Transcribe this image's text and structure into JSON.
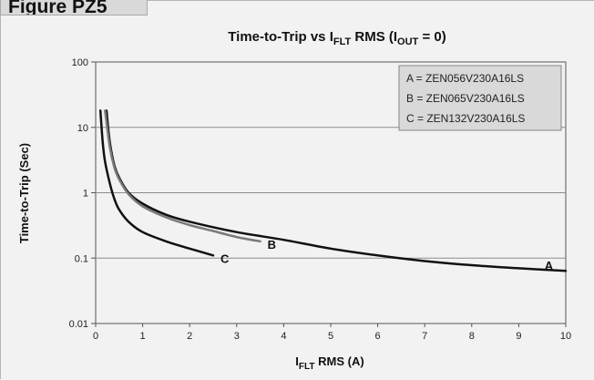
{
  "figure_label": "Figure PZ5",
  "chart_data": {
    "type": "line",
    "title": {
      "main": "Time-to-Trip vs I",
      "sub1": "FLT",
      "mid": " RMS (I",
      "sub2": "OUT",
      "end": " = 0)"
    },
    "xlabel": {
      "pre": "I",
      "sub": "FLT",
      "post": " RMS (A)"
    },
    "ylabel": "Time-to-Trip (Sec)",
    "x_scale": "linear",
    "y_scale": "log",
    "xlim": [
      0,
      10
    ],
    "ylim": [
      0.01,
      100
    ],
    "x_ticks": [
      "0",
      "1",
      "2",
      "3",
      "4",
      "5",
      "6",
      "7",
      "8",
      "9",
      "10"
    ],
    "y_ticks": [
      "0.01",
      "0.1",
      "1",
      "10",
      "100"
    ],
    "grid": "horizontal",
    "legend_position": "top-right",
    "legend": [
      "A = ZEN056V230A16LS",
      "B = ZEN065V230A16LS",
      "C = ZEN132V230A16LS"
    ],
    "series": [
      {
        "name": "A",
        "label": "A",
        "color": "#111111",
        "x": [
          0.23,
          0.3,
          0.4,
          0.5,
          0.7,
          1.0,
          1.5,
          2.0,
          3.0,
          4.0,
          5.0,
          6.0,
          7.0,
          8.0,
          9.0,
          10.0
        ],
        "y": [
          18,
          6,
          2.6,
          1.7,
          1.0,
          0.68,
          0.46,
          0.36,
          0.25,
          0.19,
          0.14,
          0.11,
          0.09,
          0.078,
          0.07,
          0.064
        ]
      },
      {
        "name": "B",
        "label": "B",
        "color": "#7a7a7a",
        "x": [
          0.2,
          0.3,
          0.4,
          0.5,
          0.7,
          1.0,
          1.5,
          2.0,
          2.5,
          3.0,
          3.5
        ],
        "y": [
          18,
          5,
          2.4,
          1.6,
          0.95,
          0.62,
          0.42,
          0.32,
          0.26,
          0.21,
          0.18
        ]
      },
      {
        "name": "C",
        "label": "C",
        "color": "#111111",
        "x": [
          0.1,
          0.15,
          0.2,
          0.3,
          0.4,
          0.5,
          0.7,
          1.0,
          1.5,
          2.0,
          2.5
        ],
        "y": [
          18,
          6,
          3,
          1.4,
          0.8,
          0.55,
          0.36,
          0.25,
          0.18,
          0.14,
          0.11
        ]
      }
    ]
  }
}
